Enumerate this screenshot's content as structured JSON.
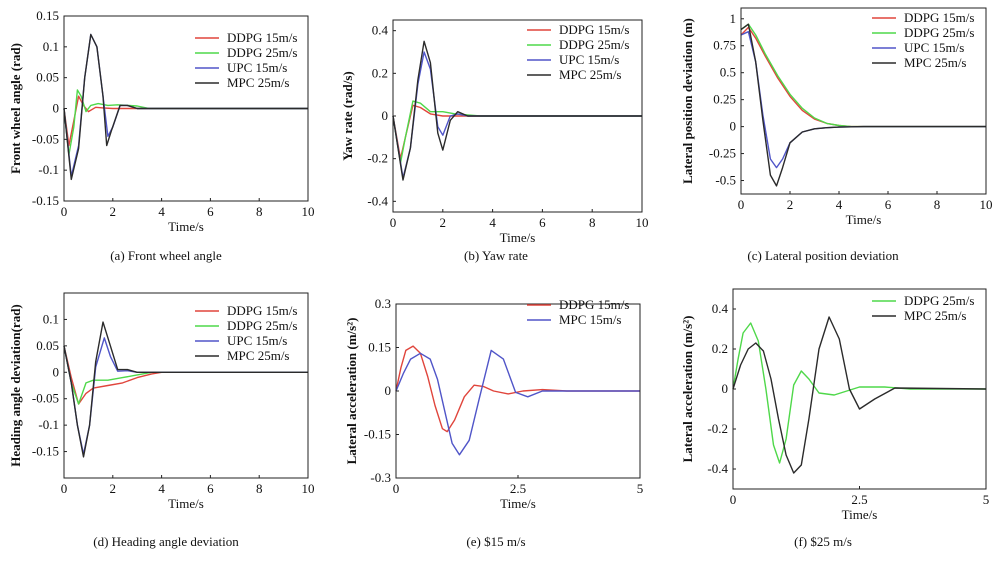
{
  "colors": {
    "ddpg15": "#e0453c",
    "ddpg25": "#4fd84a",
    "upc15": "#5055c8",
    "mpc25": "#2b2b2b",
    "mpc15": "#5055c8"
  },
  "chart_data": [
    {
      "type": "line",
      "caption": "(a) Front wheel angle",
      "xlabel": "Time/s",
      "ylabel": "Front wheel angle (rad)",
      "xlim": [
        0,
        10
      ],
      "ylim": [
        -0.15,
        0.15
      ],
      "xticks": [
        "0",
        "2",
        "4",
        "6",
        "8",
        "10"
      ],
      "yticks": [
        "-0.15",
        "-0.1",
        "-0.05",
        "0",
        "0.05",
        "0.1",
        "0.15"
      ],
      "legend_position": "top-right",
      "series": [
        {
          "name": "DDPG 15m/s",
          "color_key": "ddpg15",
          "x": [
            0,
            0.2,
            0.4,
            0.6,
            0.8,
            1.0,
            1.3,
            1.6,
            2.0,
            3.0,
            10
          ],
          "y": [
            0,
            -0.06,
            -0.02,
            0.02,
            0.005,
            -0.005,
            0.002,
            0.001,
            0,
            0,
            0
          ]
        },
        {
          "name": "DDPG 25m/s",
          "color_key": "ddpg25",
          "x": [
            0,
            0.2,
            0.4,
            0.55,
            0.7,
            0.9,
            1.1,
            1.4,
            1.8,
            2.2,
            3.0,
            3.5,
            10
          ],
          "y": [
            0,
            -0.075,
            -0.03,
            0.03,
            0.02,
            -0.005,
            0.005,
            0.008,
            0.005,
            0.006,
            0.004,
            0,
            0
          ]
        },
        {
          "name": "UPC 15m/s",
          "color_key": "upc15",
          "x": [
            0,
            0.3,
            0.6,
            0.85,
            1.1,
            1.35,
            1.6,
            1.8,
            2.0,
            2.3,
            2.6,
            3.0,
            10
          ],
          "y": [
            0,
            -0.11,
            -0.06,
            0.05,
            0.12,
            0.1,
            0.02,
            -0.045,
            -0.03,
            0.005,
            0.005,
            0,
            0
          ]
        },
        {
          "name": "MPC 25m/s",
          "color_key": "mpc25",
          "x": [
            0,
            0.3,
            0.6,
            0.85,
            1.1,
            1.35,
            1.6,
            1.75,
            1.95,
            2.3,
            2.6,
            3.0,
            10
          ],
          "y": [
            0,
            -0.115,
            -0.065,
            0.05,
            0.12,
            0.1,
            0.02,
            -0.06,
            -0.035,
            0.005,
            0.005,
            0,
            0
          ]
        }
      ]
    },
    {
      "type": "line",
      "caption": "(b) Yaw rate",
      "xlabel": "Time/s",
      "ylabel": "Yaw rate (rad/s)",
      "xlim": [
        0,
        10
      ],
      "ylim": [
        -0.45,
        0.45
      ],
      "xticks": [
        "0",
        "2",
        "4",
        "6",
        "8",
        "10"
      ],
      "yticks": [
        "-0.4",
        "-0.2",
        "0",
        "0.2",
        "0.4"
      ],
      "legend_position": "top-right",
      "series": [
        {
          "name": "DDPG 15m/s",
          "color_key": "ddpg15",
          "x": [
            0,
            0.3,
            0.5,
            0.8,
            1.1,
            1.5,
            2.0,
            3.0,
            10
          ],
          "y": [
            0,
            -0.2,
            -0.1,
            0.05,
            0.04,
            0.01,
            0,
            0,
            0
          ]
        },
        {
          "name": "DDPG 25m/s",
          "color_key": "ddpg25",
          "x": [
            0,
            0.3,
            0.5,
            0.8,
            1.1,
            1.5,
            2.0,
            2.5,
            3.5,
            10
          ],
          "y": [
            0,
            -0.22,
            -0.1,
            0.07,
            0.06,
            0.02,
            0.02,
            0.01,
            0,
            0
          ]
        },
        {
          "name": "UPC 15m/s",
          "color_key": "upc15",
          "x": [
            0,
            0.4,
            0.7,
            1.0,
            1.25,
            1.5,
            1.8,
            2.0,
            2.3,
            2.6,
            3.0,
            10
          ],
          "y": [
            0,
            -0.29,
            -0.15,
            0.15,
            0.3,
            0.22,
            -0.05,
            -0.09,
            0,
            0.01,
            0,
            0
          ]
        },
        {
          "name": "MPC 25m/s",
          "color_key": "mpc25",
          "x": [
            0,
            0.4,
            0.7,
            1.0,
            1.25,
            1.5,
            1.8,
            2.0,
            2.3,
            2.6,
            3.0,
            10
          ],
          "y": [
            0,
            -0.3,
            -0.15,
            0.17,
            0.35,
            0.25,
            -0.08,
            -0.16,
            -0.02,
            0.02,
            0,
            0
          ]
        }
      ]
    },
    {
      "type": "line",
      "caption": "(c) Lateral position deviation",
      "xlabel": "Time/s",
      "ylabel": "Lateral position deviation (m)",
      "xlim": [
        0,
        10
      ],
      "ylim": [
        -0.625,
        1.1
      ],
      "xticks": [
        "0",
        "2",
        "4",
        "6",
        "8",
        "10"
      ],
      "yticks": [
        "-0.5",
        "-0.25",
        "0",
        "0.25",
        "0.5",
        "0.75",
        "1"
      ],
      "legend_position": "top-right",
      "series": [
        {
          "name": "DDPG 15m/s",
          "color_key": "ddpg15",
          "x": [
            0,
            0.3,
            0.6,
            1.0,
            1.5,
            2.0,
            2.5,
            3.0,
            3.5,
            4.0,
            4.5,
            10
          ],
          "y": [
            0.85,
            0.92,
            0.82,
            0.65,
            0.45,
            0.28,
            0.15,
            0.07,
            0.03,
            0.01,
            0,
            0
          ]
        },
        {
          "name": "DDPG 25m/s",
          "color_key": "ddpg25",
          "x": [
            0,
            0.3,
            0.6,
            1.0,
            1.5,
            2.0,
            2.5,
            3.0,
            3.5,
            4.0,
            4.5,
            10
          ],
          "y": [
            0.9,
            0.95,
            0.85,
            0.67,
            0.47,
            0.3,
            0.17,
            0.08,
            0.03,
            0.01,
            0,
            0
          ]
        },
        {
          "name": "UPC 15m/s",
          "color_key": "upc15",
          "x": [
            0,
            0.3,
            0.6,
            0.9,
            1.2,
            1.45,
            1.7,
            2.0,
            2.5,
            3.0,
            3.5,
            4.0,
            5.0,
            10
          ],
          "y": [
            0.85,
            0.88,
            0.6,
            0.1,
            -0.3,
            -0.38,
            -0.3,
            -0.15,
            -0.05,
            -0.02,
            -0.01,
            -0.005,
            0,
            0
          ]
        },
        {
          "name": "MPC 25m/s",
          "color_key": "mpc25",
          "x": [
            0,
            0.3,
            0.6,
            0.9,
            1.2,
            1.45,
            1.7,
            2.0,
            2.5,
            3.0,
            3.5,
            4.0,
            5.0,
            10
          ],
          "y": [
            0.9,
            0.95,
            0.6,
            0.05,
            -0.45,
            -0.55,
            -0.38,
            -0.15,
            -0.05,
            -0.02,
            -0.01,
            -0.005,
            0,
            0
          ]
        }
      ]
    },
    {
      "type": "line",
      "caption": "(d) Heading angle deviation",
      "xlabel": "Time/s",
      "ylabel": "Heading angle deviation(rad)",
      "xlim": [
        0,
        10
      ],
      "ylim": [
        -0.2,
        0.15
      ],
      "xticks": [
        "0",
        "2",
        "4",
        "6",
        "8",
        "10"
      ],
      "yticks": [
        "-0.15",
        "-0.1",
        "-0.05",
        "0",
        "0.05",
        "0.1"
      ],
      "legend_position": "top-right",
      "series": [
        {
          "name": "DDPG 15m/s",
          "color_key": "ddpg15",
          "x": [
            0,
            0.3,
            0.6,
            0.9,
            1.2,
            1.8,
            2.4,
            3.0,
            3.6,
            4.0,
            10
          ],
          "y": [
            0.05,
            -0.01,
            -0.06,
            -0.04,
            -0.03,
            -0.025,
            -0.02,
            -0.01,
            -0.003,
            0,
            0
          ]
        },
        {
          "name": "DDPG 25m/s",
          "color_key": "ddpg25",
          "x": [
            0,
            0.3,
            0.6,
            0.9,
            1.2,
            1.8,
            2.4,
            3.0,
            3.6,
            4.0,
            10
          ],
          "y": [
            0.05,
            -0.02,
            -0.06,
            -0.02,
            -0.015,
            -0.015,
            -0.01,
            -0.005,
            0,
            0,
            0
          ]
        },
        {
          "name": "UPC 15m/s",
          "color_key": "upc15",
          "x": [
            0,
            0.3,
            0.55,
            0.8,
            1.05,
            1.3,
            1.65,
            1.9,
            2.2,
            2.6,
            3.0,
            10
          ],
          "y": [
            0.05,
            -0.02,
            -0.1,
            -0.155,
            -0.1,
            0.01,
            0.065,
            0.03,
            0.002,
            0.003,
            0,
            0
          ]
        },
        {
          "name": "MPC 25m/s",
          "color_key": "mpc25",
          "x": [
            0,
            0.3,
            0.55,
            0.8,
            1.05,
            1.3,
            1.6,
            1.9,
            2.2,
            2.6,
            3.0,
            10
          ],
          "y": [
            0.05,
            -0.02,
            -0.1,
            -0.16,
            -0.1,
            0.02,
            0.095,
            0.05,
            0.005,
            0.005,
            0,
            0
          ]
        }
      ]
    },
    {
      "type": "line",
      "caption": "(e) $15 m/s",
      "xlabel": "Time/s",
      "ylabel": "Lateral acceleration (m/s²)",
      "xlim": [
        0,
        5
      ],
      "ylim": [
        -0.3,
        0.3
      ],
      "xticks": [
        "0",
        "2.5",
        "5"
      ],
      "yticks": [
        "-0.3",
        "-0.15",
        "0",
        "0.15",
        "0.3"
      ],
      "legend_position": "top-right",
      "series": [
        {
          "name": "DDPG 15m/s",
          "color_key": "ddpg15",
          "x": [
            0,
            0.1,
            0.2,
            0.35,
            0.5,
            0.65,
            0.8,
            0.95,
            1.05,
            1.2,
            1.4,
            1.6,
            1.8,
            2.0,
            2.3,
            2.6,
            3.0,
            3.5,
            5
          ],
          "y": [
            0,
            0.08,
            0.14,
            0.155,
            0.13,
            0.05,
            -0.05,
            -0.13,
            -0.14,
            -0.1,
            -0.02,
            0.02,
            0.015,
            0,
            -0.01,
            0,
            0.005,
            0,
            0
          ]
        },
        {
          "name": "MPC 15m/s",
          "color_key": "mpc15",
          "x": [
            0,
            0.15,
            0.3,
            0.5,
            0.7,
            0.85,
            1.0,
            1.15,
            1.3,
            1.5,
            1.7,
            1.95,
            2.2,
            2.45,
            2.7,
            3.0,
            3.5,
            5
          ],
          "y": [
            0,
            0.06,
            0.11,
            0.13,
            0.11,
            0.04,
            -0.07,
            -0.18,
            -0.22,
            -0.17,
            -0.03,
            0.14,
            0.11,
            -0.005,
            -0.02,
            0,
            0,
            0
          ]
        }
      ]
    },
    {
      "type": "line",
      "caption": "(f) $25 m/s",
      "xlabel": "Time/s",
      "ylabel": "Lateral acceleration (m/s²)",
      "xlim": [
        0,
        5
      ],
      "ylim": [
        -0.5,
        0.5
      ],
      "xticks": [
        "0",
        "2.5",
        "5"
      ],
      "yticks": [
        "-0.4",
        "-0.2",
        "0",
        "0.2",
        "0.4"
      ],
      "legend_position": "top-right",
      "series": [
        {
          "name": "DDPG 25m/s",
          "color_key": "ddpg25",
          "x": [
            0,
            0.1,
            0.2,
            0.35,
            0.5,
            0.65,
            0.8,
            0.92,
            1.05,
            1.2,
            1.35,
            1.5,
            1.7,
            2.0,
            2.5,
            3.0,
            3.5,
            5
          ],
          "y": [
            0,
            0.15,
            0.28,
            0.33,
            0.24,
            0.0,
            -0.28,
            -0.37,
            -0.25,
            0.02,
            0.09,
            0.05,
            -0.02,
            -0.03,
            0.01,
            0.01,
            0,
            0
          ]
        },
        {
          "name": "MPC 25m/s",
          "color_key": "mpc25",
          "x": [
            0,
            0.15,
            0.3,
            0.45,
            0.6,
            0.75,
            0.9,
            1.05,
            1.2,
            1.35,
            1.5,
            1.7,
            1.9,
            2.1,
            2.3,
            2.5,
            2.8,
            3.2,
            5
          ],
          "y": [
            0,
            0.12,
            0.2,
            0.23,
            0.19,
            0.05,
            -0.15,
            -0.33,
            -0.42,
            -0.38,
            -0.15,
            0.2,
            0.36,
            0.25,
            0.0,
            -0.1,
            -0.05,
            0.005,
            0
          ]
        }
      ]
    }
  ]
}
